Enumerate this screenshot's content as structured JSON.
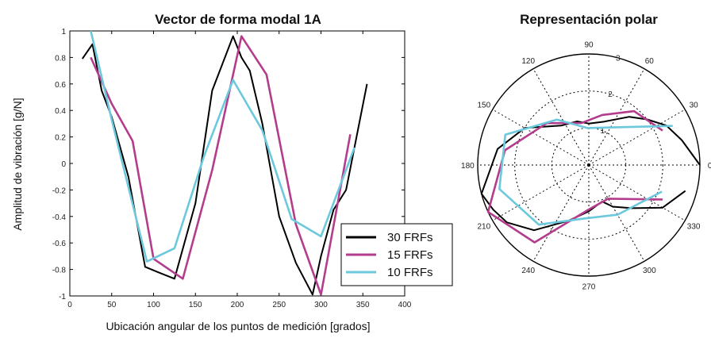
{
  "chart_data": [
    {
      "type": "line",
      "title": "Vector de forma modal 1A",
      "xlabel": "Ubicación angular de los puntos de medición [grados]",
      "ylabel": "Amplitud de vibración [g/N]",
      "xlim": [
        0,
        400
      ],
      "ylim": [
        -1,
        1
      ],
      "xticks": [
        "0",
        "50",
        "100",
        "150",
        "200",
        "250",
        "300",
        "350",
        "400"
      ],
      "yticks": [
        "1",
        "0.8",
        "0.6",
        "0.4",
        "0.2",
        "0",
        "-0.2",
        "-0.4",
        "-0.6",
        "-0.8",
        "-1"
      ],
      "grid": false,
      "legend": "bottom-right",
      "series": [
        {
          "name": "30 FRFs",
          "color": "#000000",
          "x": [
            15,
            27,
            38,
            50,
            70,
            90,
            105,
            125,
            150,
            170,
            195,
            205,
            215,
            230,
            250,
            270,
            290,
            300,
            315,
            330,
            355
          ],
          "y": [
            0.79,
            0.9,
            0.55,
            0.35,
            -0.1,
            -0.78,
            -0.82,
            -0.87,
            -0.3,
            0.55,
            0.96,
            0.8,
            0.7,
            0.3,
            -0.4,
            -0.75,
            -0.99,
            -0.7,
            -0.35,
            -0.2,
            0.6
          ]
        },
        {
          "name": "15 FRFs",
          "color": "#b43c8c",
          "x": [
            25,
            50,
            75,
            100,
            135,
            170,
            205,
            235,
            270,
            300,
            335
          ],
          "y": [
            0.8,
            0.45,
            0.17,
            -0.72,
            -0.87,
            -0.05,
            0.96,
            0.67,
            -0.46,
            -0.99,
            0.22
          ]
        },
        {
          "name": "10 FRFs",
          "color": "#6cc8dc",
          "x": [
            25,
            50,
            92,
            125,
            160,
            195,
            230,
            265,
            300,
            340
          ],
          "y": [
            1.0,
            0.33,
            -0.74,
            -0.64,
            0.05,
            0.63,
            0.25,
            -0.42,
            -0.55,
            0.12
          ]
        }
      ]
    },
    {
      "type": "polar",
      "title": "Representación polar",
      "rlim": [
        0,
        3
      ],
      "rticks": [
        "1",
        "2",
        "3"
      ],
      "angle_ticks": [
        "0",
        "30",
        "60",
        "90",
        "120",
        "150",
        "180",
        "210",
        "240",
        "270",
        "300",
        "330"
      ],
      "angle_tick_values": [
        0,
        30,
        60,
        90,
        120,
        150,
        180,
        210,
        240,
        270,
        300,
        330
      ],
      "series": [
        {
          "name": "30 FRFs",
          "color": "#000000",
          "theta": [
            0,
            15,
            27,
            38,
            50,
            70,
            90,
            105,
            125,
            150,
            170,
            195,
            205,
            215,
            230,
            250,
            270,
            290,
            300,
            315,
            330,
            345
          ],
          "r": [
            3.0,
            2.6,
            2.35,
            2.0,
            1.7,
            1.25,
            1.12,
            1.22,
            1.3,
            2.0,
            2.5,
            3.0,
            2.85,
            2.7,
            2.3,
            1.6,
            1.25,
            1.05,
            1.3,
            1.65,
            2.3,
            2.7
          ]
        },
        {
          "name": "15 FRFs",
          "color": "#b43c8c",
          "theta": [
            25,
            50,
            75,
            100,
            135,
            170,
            205,
            235,
            270,
            300,
            335
          ],
          "r": [
            2.2,
            1.9,
            1.4,
            1.15,
            1.6,
            2.3,
            3.0,
            2.55,
            1.2,
            1.05,
            2.2
          ]
        },
        {
          "name": "10 FRFs",
          "color": "#6cc8dc",
          "theta": [
            25,
            92,
            125,
            160,
            195,
            230,
            265,
            300,
            340
          ],
          "r": [
            2.5,
            1.0,
            1.5,
            2.4,
            2.5,
            2.1,
            1.45,
            1.55,
            2.1
          ]
        }
      ]
    }
  ]
}
